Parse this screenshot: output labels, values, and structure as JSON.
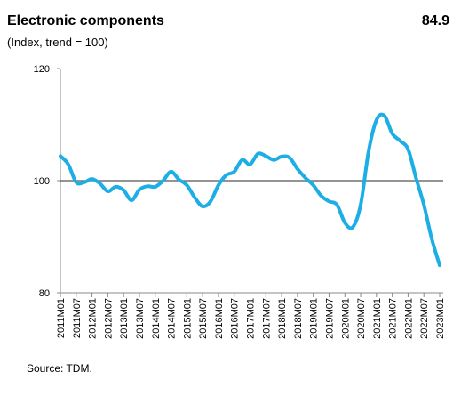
{
  "chart_data": {
    "type": "line",
    "title": "Electronic components",
    "subtitle": "(Index, trend = 100)",
    "latest": 84.9,
    "source": "Source:  TDM.",
    "categories": [
      "2011M01",
      null,
      "2011M07",
      null,
      "2012M01",
      null,
      "2012M07",
      null,
      "2013M01",
      null,
      "2013M07",
      null,
      "2014M01",
      null,
      "2014M07",
      null,
      "2015M01",
      null,
      "2015M07",
      null,
      "2016M01",
      null,
      "2016M07",
      null,
      "2017M01",
      null,
      "2017M07",
      null,
      "2018M01",
      null,
      "2018M07",
      null,
      "2019M01",
      null,
      "2019M07",
      null,
      "2020M01",
      null,
      "2020M07",
      null,
      "2021M01",
      null,
      "2021M07",
      null,
      "2022M01",
      null,
      "2022M07",
      null,
      "2023M01"
    ],
    "values": [
      104.4,
      102.9,
      99.7,
      99.7,
      100.3,
      99.5,
      98.1,
      98.9,
      98.3,
      96.5,
      98.4,
      99.0,
      98.9,
      100.0,
      101.6,
      100.2,
      99.2,
      97.0,
      95.4,
      96.3,
      99.2,
      101.0,
      101.6,
      103.7,
      102.9,
      104.8,
      104.4,
      103.7,
      104.3,
      104.1,
      102.1,
      100.5,
      99.2,
      97.3,
      96.3,
      95.7,
      92.5,
      91.7,
      95.7,
      105.2,
      110.8,
      111.6,
      108.4,
      107.1,
      105.6,
      100.5,
      95.7,
      89.6,
      84.9
    ],
    "color": "#1eaee6",
    "ylim": [
      80,
      120
    ],
    "yticks": [
      80,
      100,
      120
    ],
    "reference_line": 100
  }
}
